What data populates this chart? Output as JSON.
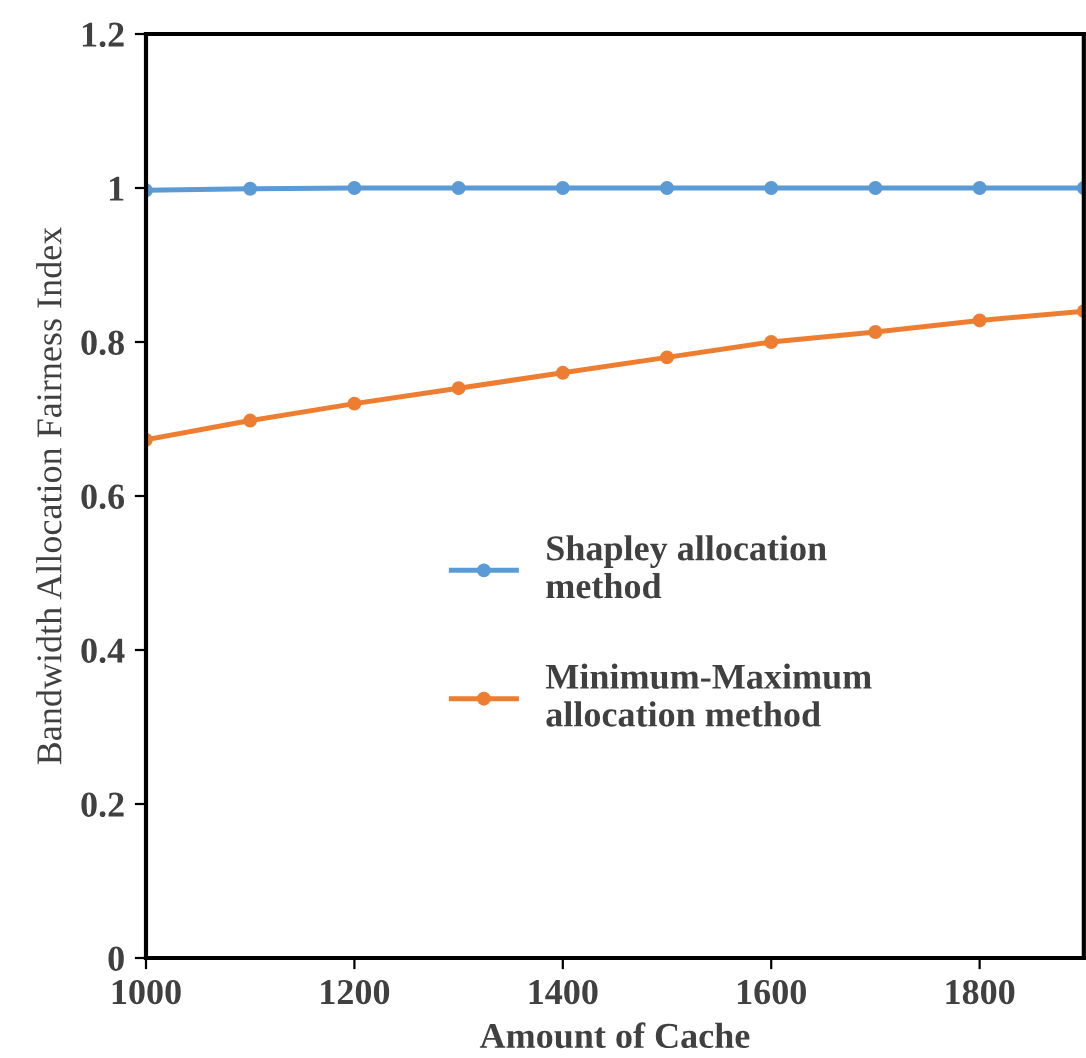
{
  "chart_data": {
    "type": "line",
    "xlabel": "Amount of Cache",
    "ylabel": "Bandwidth Allocation Fairness Index",
    "x": [
      1000,
      1100,
      1200,
      1300,
      1400,
      1500,
      1600,
      1700,
      1800,
      1900
    ],
    "series": [
      {
        "name": "Shapley allocation\nmethod",
        "color": "#5b9bd5",
        "values": [
          0.997,
          0.999,
          1.0,
          1.0,
          1.0,
          1.0,
          1.0,
          1.0,
          1.0,
          1.0
        ]
      },
      {
        "name": "Minimum-Maximum\nallocation method",
        "color": "#ed7d31",
        "values": [
          0.673,
          0.698,
          0.72,
          0.74,
          0.76,
          0.78,
          0.8,
          0.813,
          0.828,
          0.84
        ]
      }
    ],
    "xlim": [
      1000,
      1900
    ],
    "xticks": [
      1000,
      1200,
      1400,
      1600,
      1800
    ],
    "ylim": [
      0,
      1.2
    ],
    "yticks": [
      0,
      0.2,
      0.4,
      0.6,
      0.8,
      1,
      1.2
    ],
    "marker": "circle",
    "line_style": "solid",
    "grid": false,
    "legend": "center"
  }
}
